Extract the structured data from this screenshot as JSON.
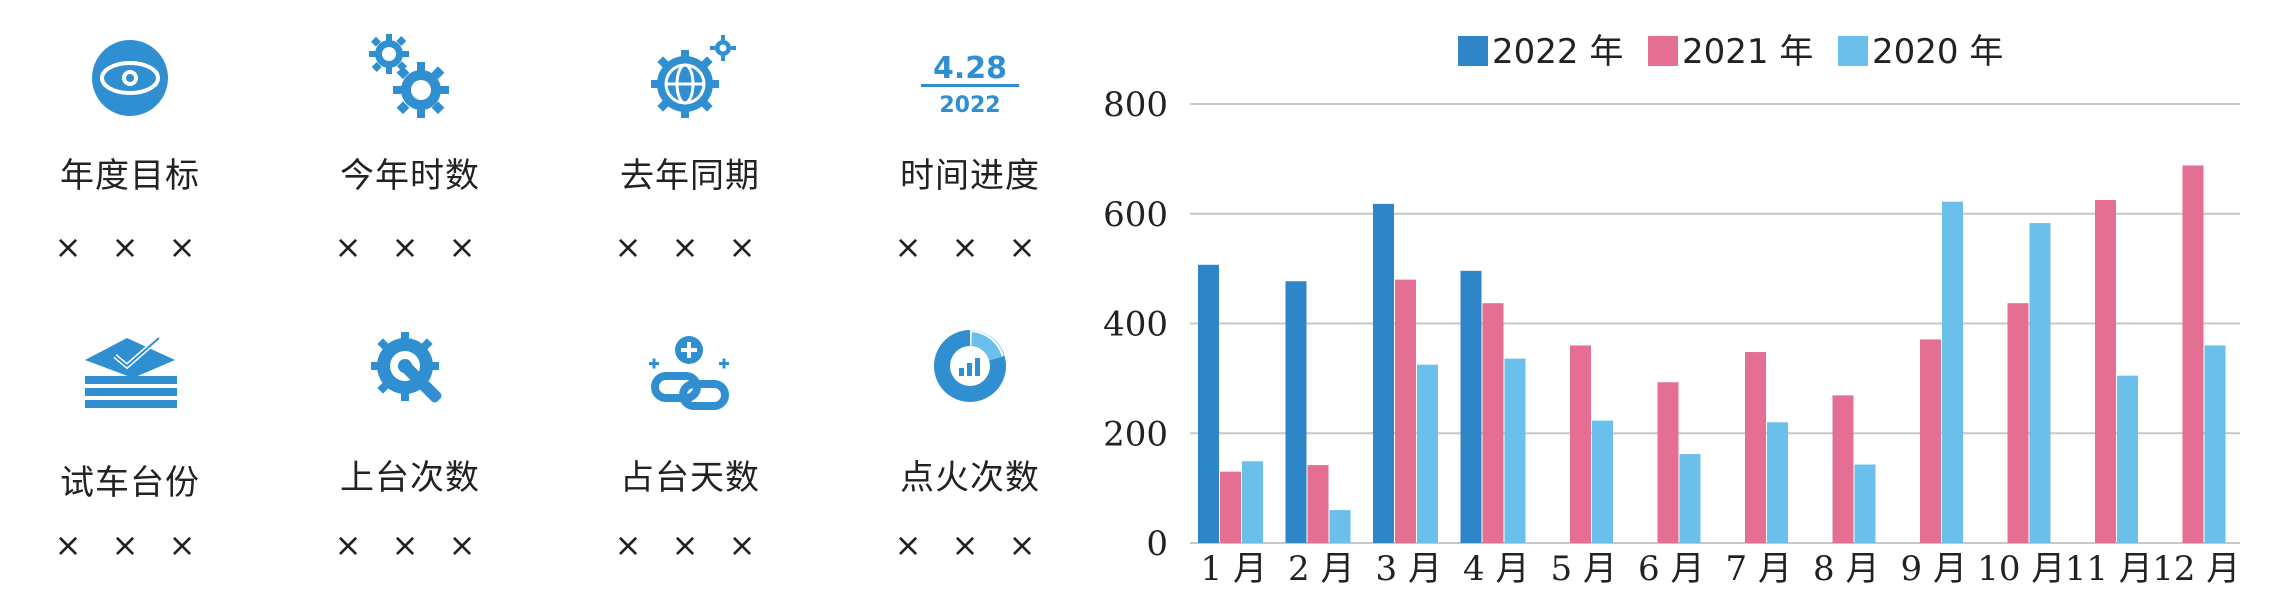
{
  "stats": [
    {
      "icon": "eye-icon",
      "label": "年度目标",
      "value": "× × ×"
    },
    {
      "icon": "gears-icon",
      "label": "今年时数",
      "value": "× × ×"
    },
    {
      "icon": "globe-gear-icon",
      "label": "去年同期",
      "value": "× × ×"
    },
    {
      "icon": "date-icon",
      "icon_text_top": "4.28",
      "icon_text_bottom": "2022",
      "label": "时间进度",
      "value": "× × ×"
    },
    {
      "icon": "layers-check-icon",
      "label": "试车台份",
      "value": "× × ×"
    },
    {
      "icon": "wrench-gear-icon",
      "label": "上台次数",
      "value": "× × ×"
    },
    {
      "icon": "link-plus-icon",
      "label": "占台天数",
      "value": "× × ×"
    },
    {
      "icon": "pie-chart-icon",
      "label": "点火次数",
      "value": "× × ×"
    }
  ],
  "colors": {
    "icon": "#2f8fd0",
    "series_2022": "#2e86c8",
    "series_2021": "#e56f92",
    "series_2020": "#6ac0ea",
    "grid": "#c8c8c8"
  },
  "chart_data": {
    "type": "bar",
    "categories": [
      "1 月",
      "2 月",
      "3 月",
      "4 月",
      "5 月",
      "6 月",
      "7 月",
      "8 月",
      "9 月",
      "10 月",
      "11 月",
      "12 月"
    ],
    "series": [
      {
        "name": "2022 年",
        "values": [
          507,
          477,
          618,
          496,
          null,
          null,
          null,
          null,
          null,
          null,
          null,
          null
        ]
      },
      {
        "name": "2021 年",
        "values": [
          130,
          142,
          480,
          437,
          360,
          293,
          348,
          269,
          371,
          437,
          625,
          688
        ]
      },
      {
        "name": "2020 年",
        "values": [
          149,
          60,
          325,
          336,
          223,
          162,
          220,
          143,
          622,
          583,
          305,
          360
        ]
      }
    ],
    "ylim": [
      0,
      800
    ],
    "yticks": [
      0,
      200,
      400,
      600,
      800
    ],
    "grid": true,
    "legend": "top"
  }
}
